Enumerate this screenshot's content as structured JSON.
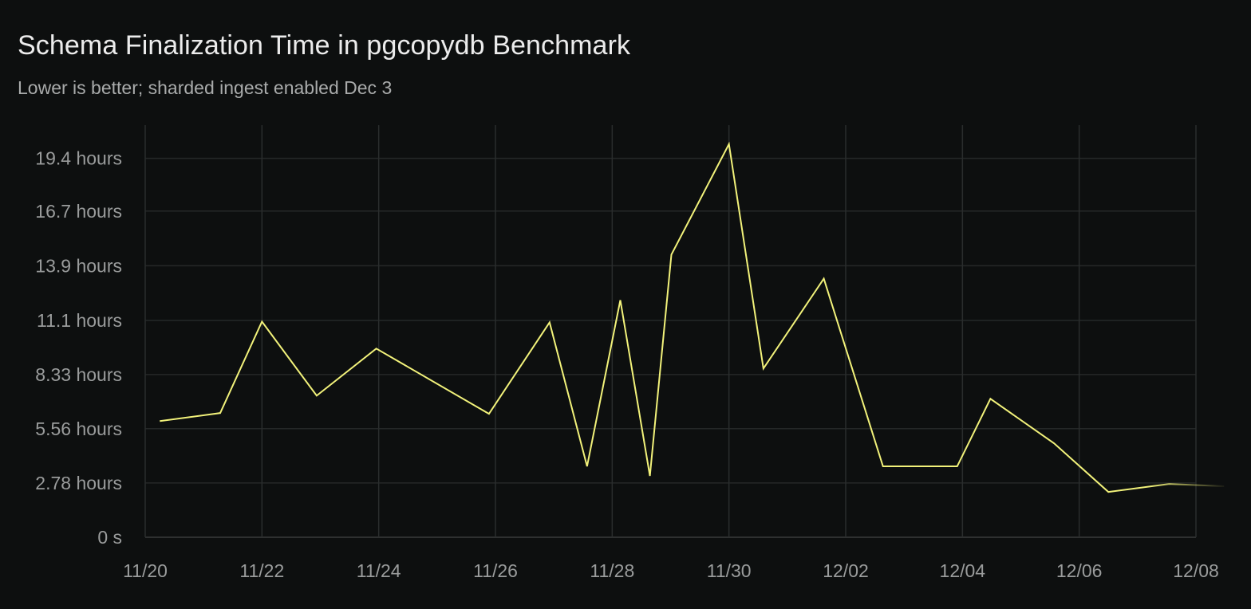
{
  "chart_data": {
    "type": "line",
    "title": "Schema Finalization Time in pgcopydb Benchmark",
    "subtitle": "Lower is better; sharded ingest enabled Dec 3",
    "xlabel": "",
    "ylabel": "",
    "x_unit": "date",
    "y_unit": "hours",
    "xlim": [
      "2024-11-20T00:00",
      "2024-12-08T00:00"
    ],
    "ylim": [
      0,
      21.1
    ],
    "grid": true,
    "line_color": "#f2f27a",
    "x_ticks": [
      "11/20",
      "11/22",
      "11/24",
      "11/26",
      "11/28",
      "11/30",
      "12/02",
      "12/04",
      "12/06",
      "12/08"
    ],
    "y_ticks": [
      {
        "value": 0,
        "label": "0 s"
      },
      {
        "value": 2.78,
        "label": "2.78 hours"
      },
      {
        "value": 5.56,
        "label": "5.56 hours"
      },
      {
        "value": 8.33,
        "label": "8.33 hours"
      },
      {
        "value": 11.1,
        "label": "11.1 hours"
      },
      {
        "value": 13.9,
        "label": "13.9 hours"
      },
      {
        "value": 16.7,
        "label": "16.7 hours"
      },
      {
        "value": 19.4,
        "label": "19.4 hours"
      }
    ],
    "series": [
      {
        "x": [
          "2024-11-20T06:00",
          "2024-11-21T06:50",
          "2024-11-22T00:00",
          "2024-11-22T22:30",
          "2024-11-23T23:00",
          "2024-11-25T21:20",
          "2024-11-26T22:15",
          "2024-11-27T13:40",
          "2024-11-28T03:20",
          "2024-11-28T15:30",
          "2024-11-29T00:20",
          "2024-11-30T00:00",
          "2024-11-30T14:10",
          "2024-12-01T15:00",
          "2024-12-02T15:20",
          "2024-12-03T21:50",
          "2024-12-04T11:30",
          "2024-12-05T13:40",
          "2024-12-06T12:00",
          "2024-12-07T13:00",
          "2024-12-08T11:30"
        ],
        "y": [
          5.95,
          6.36,
          11.04,
          7.25,
          9.66,
          6.32,
          11.0,
          3.63,
          12.14,
          3.14,
          14.47,
          20.13,
          8.64,
          13.24,
          3.63,
          3.63,
          7.09,
          4.81,
          2.32,
          2.73,
          2.61
        ]
      }
    ]
  }
}
